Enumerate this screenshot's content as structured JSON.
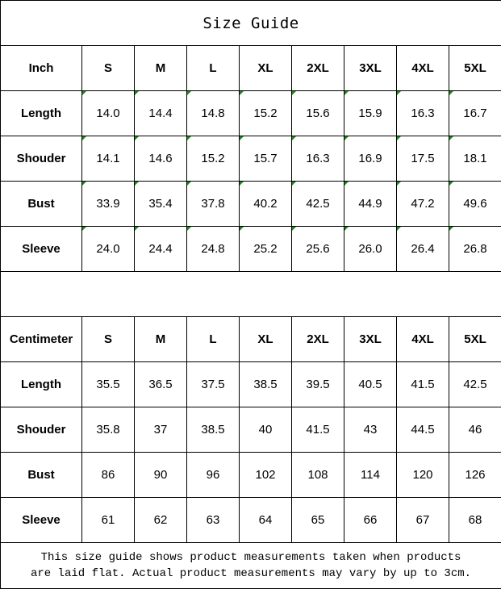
{
  "title": "Size Guide",
  "sizes": [
    "S",
    "M",
    "L",
    "XL",
    "2XL",
    "3XL",
    "4XL",
    "5XL"
  ],
  "inch": {
    "header": "Inch",
    "rows": [
      {
        "label": "Length",
        "values": [
          "14.0",
          "14.4",
          "14.8",
          "15.2",
          "15.6",
          "15.9",
          "16.3",
          "16.7"
        ]
      },
      {
        "label": "Shouder",
        "values": [
          "14.1",
          "14.6",
          "15.2",
          "15.7",
          "16.3",
          "16.9",
          "17.5",
          "18.1"
        ]
      },
      {
        "label": "Bust",
        "values": [
          "33.9",
          "35.4",
          "37.8",
          "40.2",
          "42.5",
          "44.9",
          "47.2",
          "49.6"
        ]
      },
      {
        "label": "Sleeve",
        "values": [
          "24.0",
          "24.4",
          "24.8",
          "25.2",
          "25.6",
          "26.0",
          "26.4",
          "26.8"
        ]
      }
    ]
  },
  "centimeter": {
    "header": "Centimeter",
    "rows": [
      {
        "label": "Length",
        "values": [
          "35.5",
          "36.5",
          "37.5",
          "38.5",
          "39.5",
          "40.5",
          "41.5",
          "42.5"
        ]
      },
      {
        "label": "Shouder",
        "values": [
          "35.8",
          "37",
          "38.5",
          "40",
          "41.5",
          "43",
          "44.5",
          "46"
        ]
      },
      {
        "label": "Bust",
        "values": [
          "86",
          "90",
          "96",
          "102",
          "108",
          "114",
          "120",
          "126"
        ]
      },
      {
        "label": "Sleeve",
        "values": [
          "61",
          "62",
          "63",
          "64",
          "65",
          "66",
          "67",
          "68"
        ]
      }
    ]
  },
  "footer": {
    "line1": "This size guide shows product measurements taken when products",
    "line2": "are laid flat. Actual product measurements may vary by up to 3cm."
  },
  "colors": {
    "text-flag": "#1a8a1a"
  }
}
